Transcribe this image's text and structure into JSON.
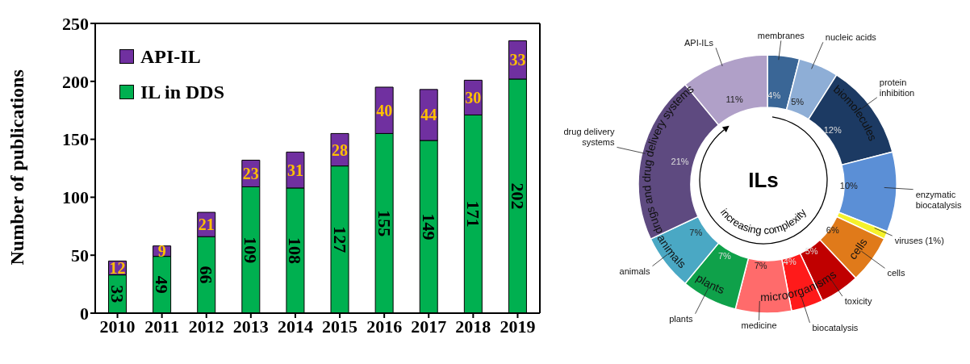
{
  "chart_data": [
    {
      "type": "bar",
      "stacked": true,
      "categories": [
        "2010",
        "2011",
        "2012",
        "2013",
        "2014",
        "2015",
        "2016",
        "2017",
        "2018",
        "2019"
      ],
      "ylabel": "Number of publications",
      "ylim": [
        0,
        250
      ],
      "yticks": [
        0,
        50,
        100,
        150,
        200,
        250
      ],
      "grid": false,
      "legend": "top left",
      "data_labels": true,
      "series": [
        {
          "name": "IL in DDS",
          "color": "#00b050",
          "values": [
            33,
            49,
            66,
            109,
            108,
            127,
            155,
            149,
            171,
            202
          ]
        },
        {
          "name": "API-IL",
          "color": "#7030a0",
          "values": [
            12,
            9,
            21,
            23,
            31,
            28,
            40,
            44,
            30,
            33
          ]
        }
      ]
    },
    {
      "type": "donut",
      "categories": [
        "membranes",
        "nucleic acids",
        "protein inhibition",
        "enzymatic biocatalysis",
        "viruses (1%)",
        "cells",
        "toxicity",
        "biocatalysis",
        "medicine",
        "plants",
        "animals",
        "drug delivery systems",
        "API-ILs"
      ],
      "values": [
        4,
        5,
        12,
        10,
        1,
        6,
        5,
        4,
        7,
        7,
        7,
        21,
        11
      ],
      "colors": [
        "#3a6696",
        "#8eaed6",
        "#1c3a63",
        "#5b8fd6",
        "#f5f22a",
        "#e07a1a",
        "#c00000",
        "#ff1a1a",
        "#ff6b6b",
        "#0fa14a",
        "#4aa8c4",
        "#5e4a80",
        "#b0a0c8"
      ],
      "value_labels": [
        "4%",
        "5%",
        "12%",
        "10%",
        null,
        "6%",
        "5%",
        "4%",
        "7%",
        "7%",
        "7%",
        "21%",
        "11%"
      ],
      "annotations": [
        "ILs",
        "increasing complexity",
        {
          "text": "biomolecules",
          "x": "protein inhibition"
        },
        {
          "text": "cells",
          "x": "cells"
        },
        {
          "text": "microorganisms",
          "x": "biocatalysis"
        },
        {
          "text": "plants",
          "x": "plants"
        },
        {
          "text": "animals",
          "x": "animals"
        },
        {
          "text": "drugs and drug delivery systems",
          "x": "drug delivery systems"
        }
      ]
    }
  ]
}
